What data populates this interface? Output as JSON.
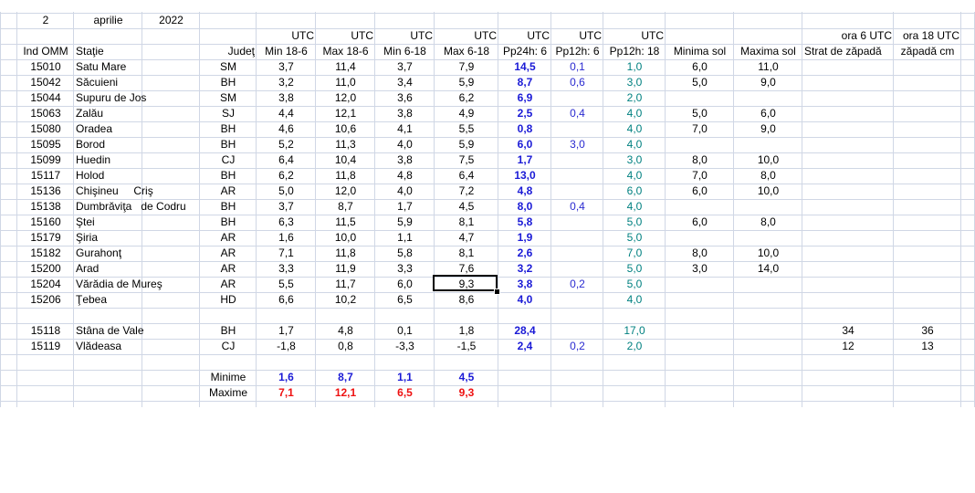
{
  "table": {
    "rows": [
      [
        "2",
        "aprilie",
        "2022",
        null,
        null,
        null,
        null,
        null,
        null,
        null,
        null,
        null,
        null,
        null,
        null
      ],
      [
        null,
        null,
        null,
        null,
        "UTC",
        "UTC",
        "UTC",
        "UTC",
        "UTC",
        "UTC",
        "UTC",
        null,
        null,
        "ora 6 UTC",
        "ora 18 UTC"
      ],
      [
        "Ind OMM",
        "Staţie",
        null,
        "Judeţ",
        "Min 18-6",
        "Max 18-6",
        "Min 6-18",
        "Max 6-18",
        "Pp24h: 6",
        "Pp12h: 6",
        "Pp12h: 18",
        "Minima sol",
        "Maxima sol",
        "Strat de zăpadă",
        "zăpadă cm"
      ],
      [
        "15010",
        "Satu Mare",
        null,
        "SM",
        "3,7",
        "11,4",
        "3,7",
        "7,9",
        "14,5",
        "0,1",
        "1,0",
        "6,0",
        "11,0",
        null,
        null
      ],
      [
        "15042",
        "Săcuieni",
        null,
        "BH",
        "3,2",
        "11,0",
        "3,4",
        "5,9",
        "8,7",
        "0,6",
        "3,0",
        "5,0",
        "9,0",
        null,
        null
      ],
      [
        "15044",
        "Supuru de Jos",
        null,
        "SM",
        "3,8",
        "12,0",
        "3,6",
        "6,2",
        "6,9",
        null,
        "2,0",
        null,
        null,
        null,
        null
      ],
      [
        "15063",
        "Zalău",
        null,
        "SJ",
        "4,4",
        "12,1",
        "3,8",
        "4,9",
        "2,5",
        "0,4",
        "4,0",
        "5,0",
        "6,0",
        null,
        null
      ],
      [
        "15080",
        "Oradea",
        null,
        "BH",
        "4,6",
        "10,6",
        "4,1",
        "5,5",
        "0,8",
        null,
        "4,0",
        "7,0",
        "9,0",
        null,
        null
      ],
      [
        "15095",
        "Borod",
        null,
        "BH",
        "5,2",
        "11,3",
        "4,0",
        "5,9",
        "6,0",
        "3,0",
        "4,0",
        null,
        null,
        null,
        null
      ],
      [
        "15099",
        "Huedin",
        null,
        "CJ",
        "6,4",
        "10,4",
        "3,8",
        "7,5",
        "1,7",
        null,
        "3,0",
        "8,0",
        "10,0",
        null,
        null
      ],
      [
        "15117",
        "Holod",
        null,
        "BH",
        "6,2",
        "11,8",
        "4,8",
        "6,4",
        "13,0",
        null,
        "4,0",
        "7,0",
        "8,0",
        null,
        null
      ],
      [
        "15136",
        "Chişineu     Criş",
        null,
        "AR",
        "5,0",
        "12,0",
        "4,0",
        "7,2",
        "4,8",
        null,
        "6,0",
        "6,0",
        "10,0",
        null,
        null
      ],
      [
        "15138",
        "Dumbrăviţa   de Codru",
        null,
        "BH",
        "3,7",
        "8,7",
        "1,7",
        "4,5",
        "8,0",
        "0,4",
        "4,0",
        null,
        null,
        null,
        null
      ],
      [
        "15160",
        "Ştei",
        null,
        "BH",
        "6,3",
        "11,5",
        "5,9",
        "8,1",
        "5,8",
        null,
        "5,0",
        "6,0",
        "8,0",
        null,
        null
      ],
      [
        "15179",
        "Şiria",
        null,
        "AR",
        "1,6",
        "10,0",
        "1,1",
        "4,7",
        "1,9",
        null,
        "5,0",
        null,
        null,
        null,
        null
      ],
      [
        "15182",
        "Gurahonţ",
        null,
        "AR",
        "7,1",
        "11,8",
        "5,8",
        "8,1",
        "2,6",
        null,
        "7,0",
        "8,0",
        "10,0",
        null,
        null
      ],
      [
        "15200",
        "Arad",
        null,
        "AR",
        "3,3",
        "11,9",
        "3,3",
        "7,6",
        "3,2",
        null,
        "5,0",
        "3,0",
        "14,0",
        null,
        null
      ],
      [
        "15204",
        "Vărădia de Mureş",
        null,
        "AR",
        "5,5",
        "11,7",
        "6,0",
        "9,3",
        "3,8",
        "0,2",
        "5,0",
        null,
        null,
        null,
        null
      ],
      [
        "15206",
        "Ţebea",
        null,
        "HD",
        "6,6",
        "10,2",
        "6,5",
        "8,6",
        "4,0",
        null,
        "4,0",
        null,
        null,
        null,
        null
      ],
      null,
      [
        "15118",
        "Stâna de Vale",
        null,
        "BH",
        "1,7",
        "4,8",
        "0,1",
        "1,8",
        "28,4",
        null,
        "17,0",
        null,
        null,
        "34",
        "36"
      ],
      [
        "15119",
        "Vlădeasa",
        null,
        "CJ",
        "-1,8",
        "0,8",
        "-3,3",
        "-1,5",
        "2,4",
        "0,2",
        "2,0",
        null,
        null,
        "12",
        "13"
      ],
      null,
      [
        null,
        null,
        null,
        "Minime",
        "1,6",
        "8,7",
        "1,1",
        "4,5",
        null,
        null,
        null,
        null,
        null,
        null,
        null
      ],
      [
        null,
        null,
        null,
        "Maxime",
        "7,1",
        "12,1",
        "6,5",
        "9,3",
        null,
        null,
        null,
        null,
        null,
        null,
        null
      ]
    ]
  }
}
